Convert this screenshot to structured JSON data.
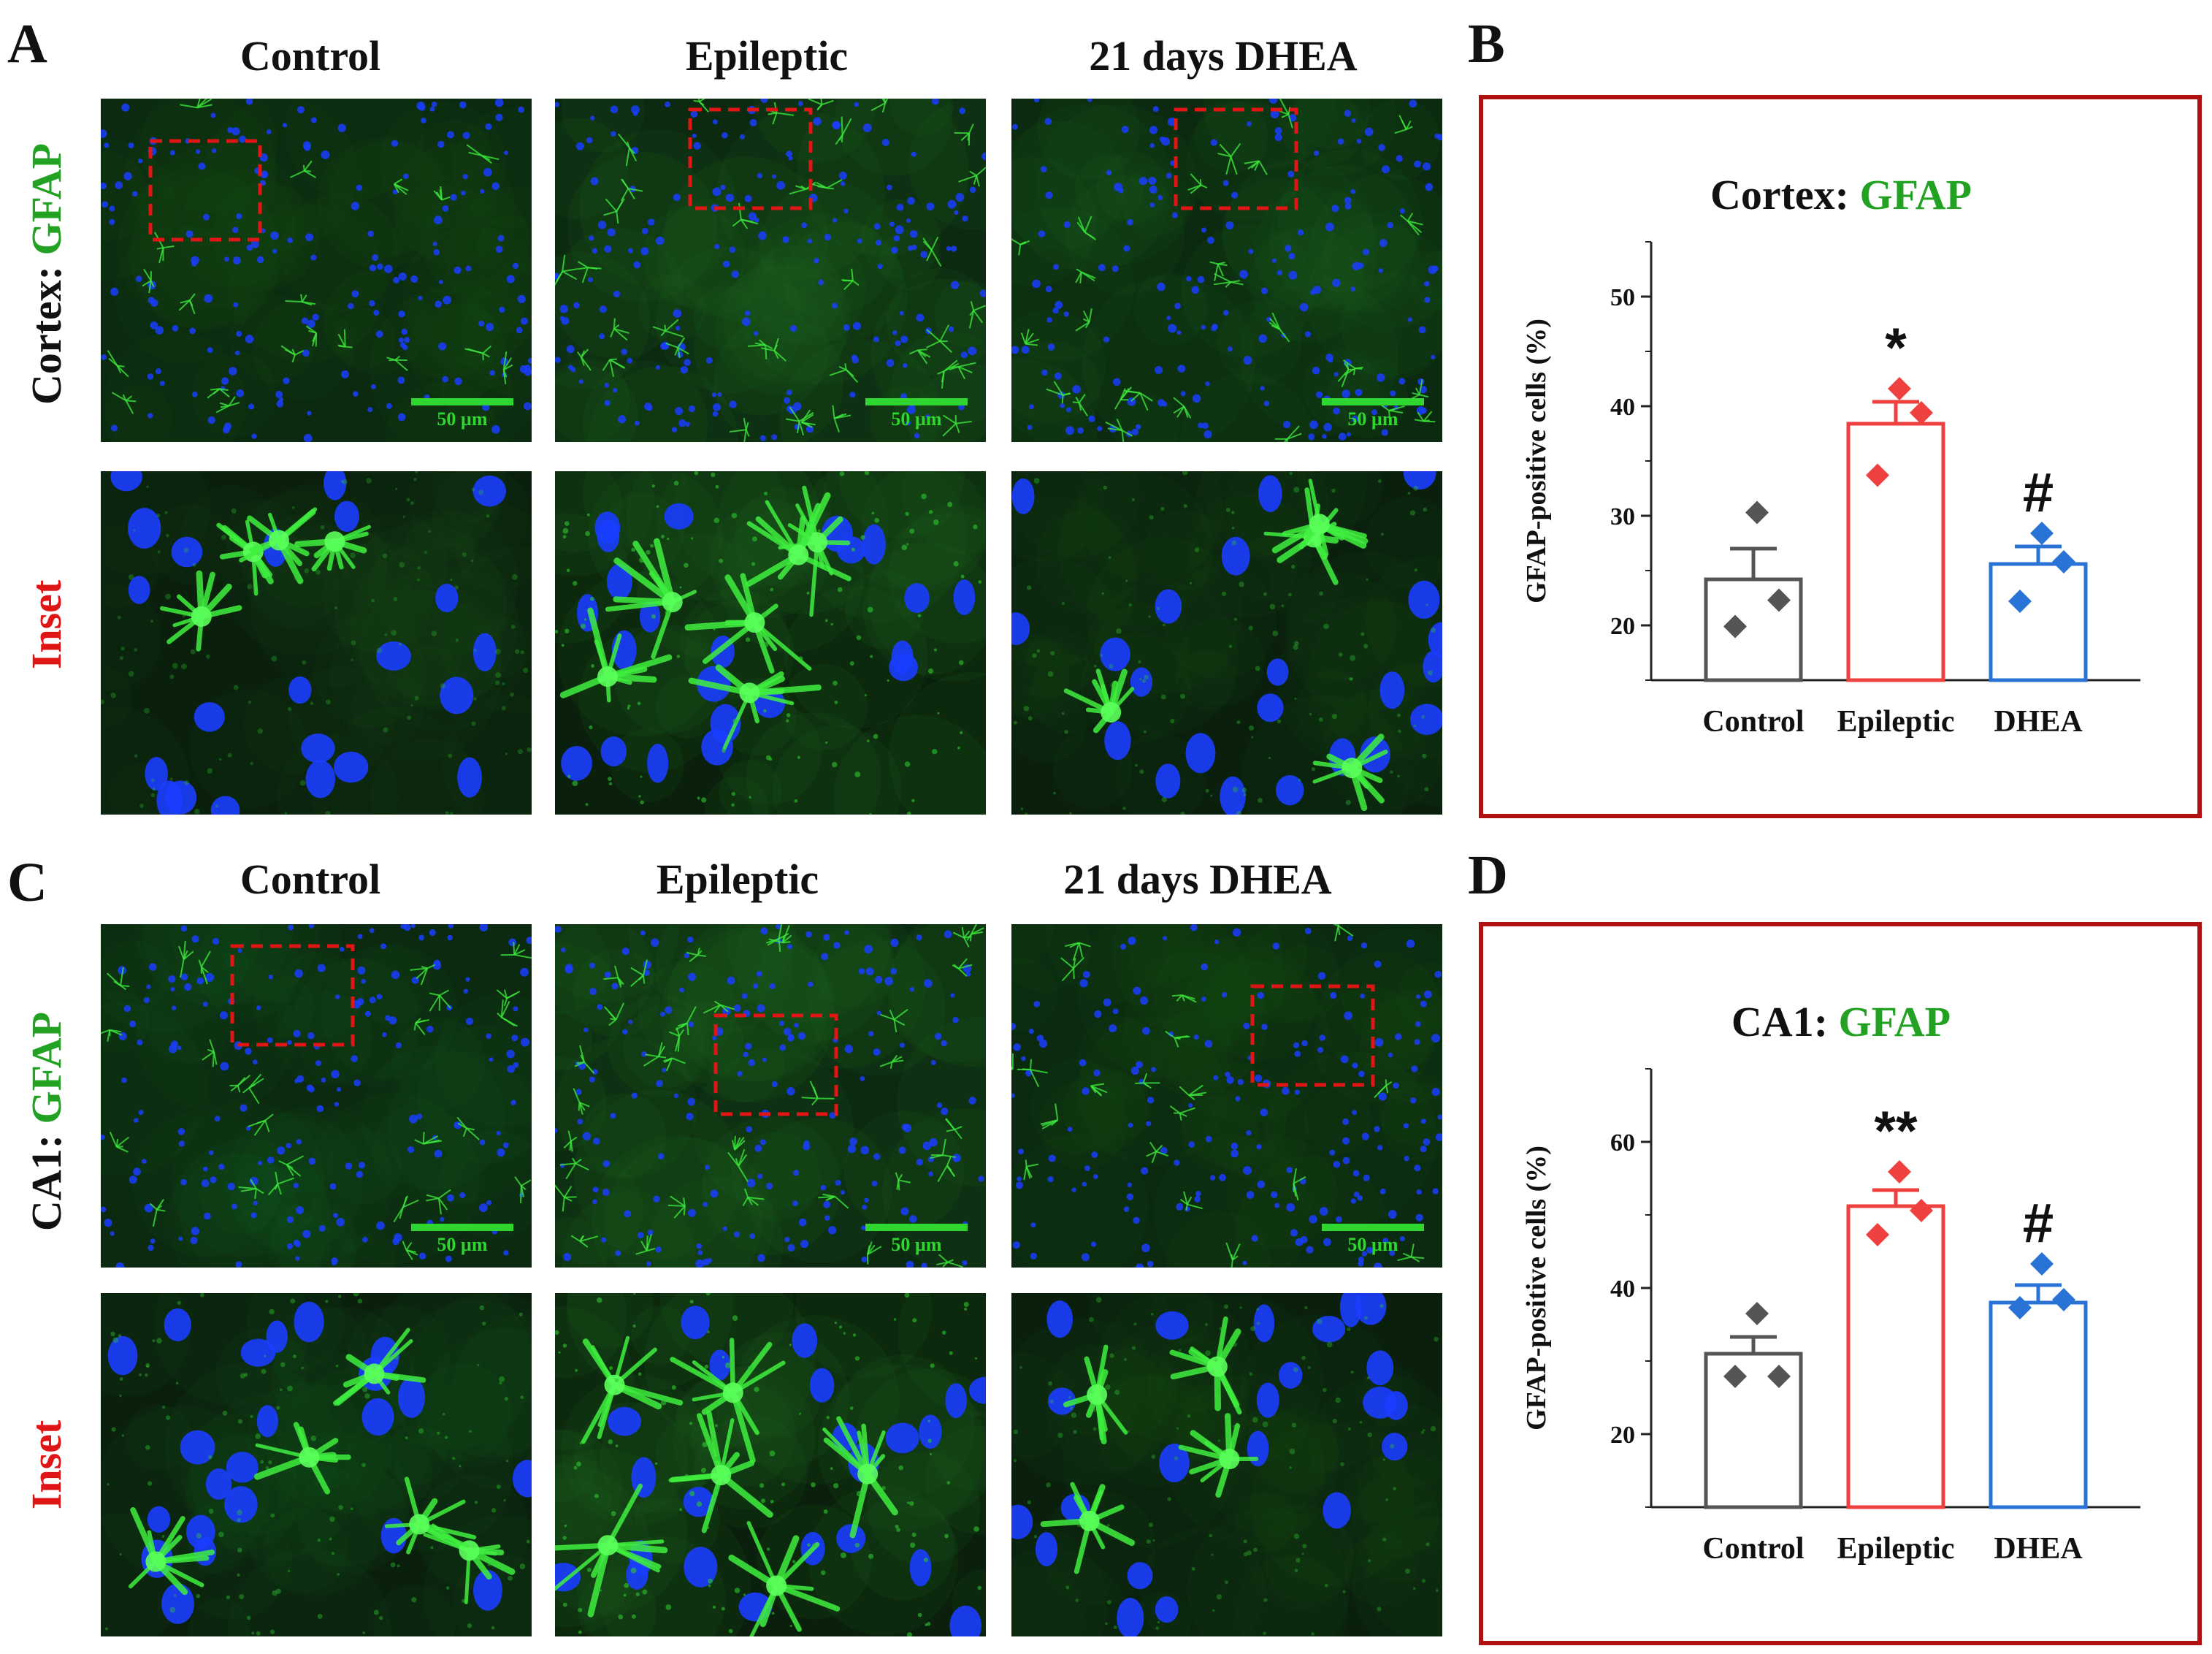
{
  "panels": {
    "A": "A",
    "B": "B",
    "C": "C",
    "D": "D"
  },
  "columns": {
    "top": [
      "Control",
      "Epileptic",
      "21 days DHEA"
    ],
    "bottom": [
      "Control",
      "Epileptic",
      "21 days DHEA"
    ]
  },
  "rows": {
    "cortex_prefix": "Cortex: ",
    "ca1_prefix": "CA1: ",
    "marker": "GFAP",
    "inset": "Inset"
  },
  "scale_bar": "50 µm",
  "colors": {
    "gfap_green": "#22a122",
    "inset_red": "#e01515",
    "frame_red": "#b01010",
    "control_gray": "#555555",
    "epileptic_red": "#ef4040",
    "dhea_blue": "#2a73d6",
    "nuclei_blue": "#1a3dff"
  },
  "chart_data": [
    {
      "type": "bar",
      "title_prefix": "Cortex: ",
      "title_marker": "GFAP",
      "ylabel": "GFAP-positive cells (%)",
      "categories": [
        "Control",
        "Epileptic",
        "DHEA"
      ],
      "values": [
        24.2,
        38.4,
        25.6
      ],
      "errors": [
        2.8,
        2.0,
        1.6
      ],
      "points": [
        [
          30.3,
          22.3,
          19.9
        ],
        [
          41.6,
          39.4,
          33.7
        ],
        [
          28.4,
          25.8,
          22.2
        ]
      ],
      "annotations": [
        "",
        "*",
        "#"
      ],
      "ylim": [
        15,
        55
      ],
      "yticks": [
        20,
        30,
        40,
        50
      ]
    },
    {
      "type": "bar",
      "title_prefix": "CA1: ",
      "title_marker": "GFAP",
      "ylabel": "GFAP-positive cells (%)",
      "categories": [
        "Control",
        "Epileptic",
        "DHEA"
      ],
      "values": [
        31.0,
        51.2,
        38.0
      ],
      "errors": [
        2.3,
        2.2,
        2.4
      ],
      "points": [
        [
          36.5,
          27.9,
          27.9
        ],
        [
          55.9,
          50.6,
          47.3
        ],
        [
          43.3,
          38.4,
          37.3
        ]
      ],
      "annotations": [
        "",
        "**",
        "#"
      ],
      "ylim": [
        10,
        70
      ],
      "yticks": [
        20,
        40,
        60
      ]
    }
  ]
}
